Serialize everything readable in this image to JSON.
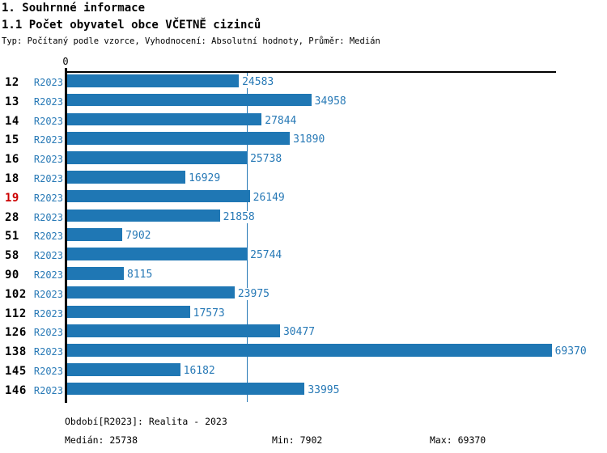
{
  "header": {
    "title1": "1. Souhrnné informace",
    "title2": "1.1 Počet obyvatel obce VČETNĚ cizinců",
    "subtitle": "Typ: Počítaný podle vzorce, Vyhodnocení: Absolutní hodnoty, Průměr: Medián"
  },
  "chart_data": {
    "type": "bar",
    "orientation": "horizontal",
    "title": "1.1 Počet obyvatel obce VČETNĚ cizinců",
    "series_label": "R2023",
    "categories": [
      "12",
      "13",
      "14",
      "15",
      "16",
      "18",
      "19",
      "28",
      "51",
      "58",
      "90",
      "102",
      "112",
      "126",
      "138",
      "145",
      "146"
    ],
    "values": [
      24583,
      34958,
      27844,
      31890,
      25738,
      16929,
      26149,
      21858,
      7902,
      25744,
      8115,
      23975,
      17573,
      30477,
      69370,
      16182,
      33995
    ],
    "highlighted_category": "19",
    "x_axis": {
      "min": 0,
      "max": 70000,
      "tick_labels": [
        "0"
      ],
      "grid": false
    },
    "median_value": 25738,
    "legend_position": "none",
    "colors": {
      "bar": "#1f77b4",
      "blue_text": "#2779b6",
      "highlight_text": "#cc0000",
      "axis": "#000000"
    }
  },
  "footer": {
    "period": "Období[R2023]: Realita - 2023",
    "median": "Medián: 25738",
    "min": "Min: 7902",
    "max": "Max: 69370"
  }
}
